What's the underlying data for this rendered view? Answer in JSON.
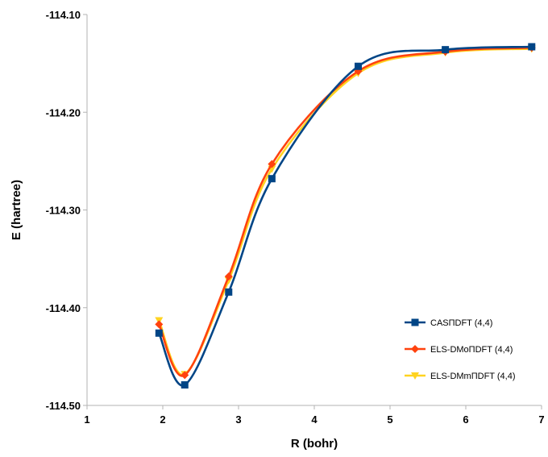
{
  "chart_data": {
    "type": "line",
    "xlabel": "R (bohr)",
    "ylabel": "E (hartree)",
    "xlim": [
      1,
      7
    ],
    "ylim": [
      -114.5,
      -114.1
    ],
    "x_ticks": [
      "1",
      "2",
      "3",
      "4",
      "5",
      "6",
      "7"
    ],
    "y_ticks": [
      "-114.10",
      "-114.20",
      "-114.30",
      "-114.40",
      "-114.50"
    ],
    "grid": false,
    "legend_position": "bottom-right",
    "series": [
      {
        "name": "CASПDFT (4,4)",
        "color": "#004586",
        "marker": "square",
        "x": [
          1.95,
          2.29,
          2.87,
          3.44,
          4.58,
          5.73,
          6.87
        ],
        "y": [
          -114.426,
          -114.479,
          -114.384,
          -114.268,
          -114.153,
          -114.136,
          -114.133
        ]
      },
      {
        "name": "ELS-DMoПDFT (4,4)",
        "color": "#ff420e",
        "marker": "diamond",
        "x": [
          1.95,
          2.29,
          2.87,
          3.44,
          4.58,
          5.73,
          6.87
        ],
        "y": [
          -114.417,
          -114.469,
          -114.368,
          -114.253,
          -114.158,
          -114.138,
          -114.134
        ]
      },
      {
        "name": "ELS-DMmПDFT (4,4)",
        "color": "#ffd320",
        "marker": "triangle-down",
        "x": [
          1.95,
          2.29,
          2.87,
          3.44,
          4.58,
          5.73,
          6.87
        ],
        "y": [
          -114.413,
          -114.468,
          -114.372,
          -114.258,
          -114.16,
          -114.139,
          -114.135
        ]
      }
    ]
  }
}
